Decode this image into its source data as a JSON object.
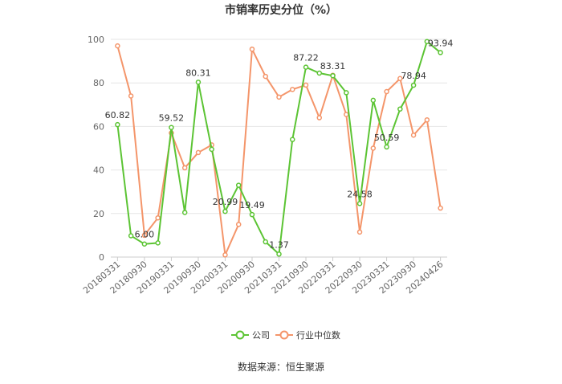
{
  "chart_data": {
    "type": "line",
    "title": "市销率历史分位（%）",
    "source": "数据来源：恒生聚源",
    "categories": [
      "20180331",
      null,
      "20180930",
      null,
      "20190331",
      null,
      "20190930",
      null,
      "20200331",
      null,
      "20200930",
      null,
      "20210331",
      null,
      "20210930",
      null,
      "20220331",
      null,
      "20220930",
      null,
      "20230331",
      null,
      "20230930",
      null,
      "20240426"
    ],
    "series": [
      {
        "name": "公司",
        "color": "#5cc434",
        "values": [
          60.82,
          9.8,
          6,
          6.5,
          59.52,
          20.5,
          80.31,
          49.5,
          20.99,
          33,
          19.49,
          7,
          1.37,
          54,
          87.22,
          84.5,
          83.31,
          75.5,
          24.58,
          72,
          50.59,
          68,
          78.94,
          99,
          93.94
        ],
        "value_labels": [
          "60.82",
          null,
          "6.00",
          null,
          "59.52",
          null,
          "80.31",
          null,
          "20.99",
          null,
          "19.49",
          null,
          "1.37",
          null,
          "87.22",
          null,
          "83.31",
          null,
          "24.58",
          null,
          "50.59",
          null,
          "78.94",
          null,
          "93.94"
        ]
      },
      {
        "name": "行业中位数",
        "color": "#f4956a",
        "values": [
          97,
          74,
          10,
          18,
          57,
          41,
          48,
          51.5,
          1,
          15,
          95.5,
          83,
          73.5,
          77,
          79,
          64,
          83.5,
          65.5,
          11.5,
          50,
          76,
          82,
          56,
          63,
          22.5
        ]
      }
    ],
    "ylim": [
      0,
      100
    ],
    "yticks": [
      0,
      20,
      40,
      60,
      80,
      100
    ],
    "grid": true,
    "legend": "bottom"
  }
}
